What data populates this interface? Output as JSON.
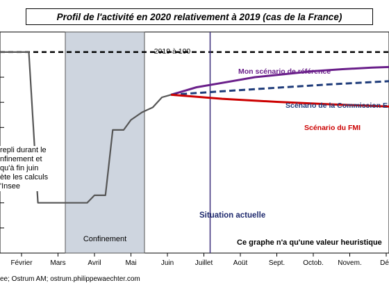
{
  "chart_data": {
    "type": "line",
    "title": "Profil de l'activité en 2020 relativement à 2019 (cas de la France)",
    "x_ticks": [
      "Février",
      "Mars",
      "Avril",
      "Mai",
      "Juin",
      "Juillet",
      "Aoüt",
      "Sept.",
      "Octob.",
      "Novem.",
      "Déc"
    ],
    "reference": {
      "label": "2019 à 100",
      "value": 100
    },
    "ylim": [
      60,
      104
    ],
    "confinement_label": "Confinement",
    "situation_label": "Situation actuelle",
    "situation_month": 5.0,
    "series": [
      {
        "name": "",
        "color": "#555555",
        "points": [
          [
            -1.0,
            100
          ],
          [
            0.2,
            100
          ],
          [
            0.45,
            70
          ],
          [
            1.8,
            70
          ],
          [
            2.0,
            71.5
          ],
          [
            2.3,
            71.5
          ],
          [
            2.5,
            84.5
          ],
          [
            2.8,
            84.5
          ],
          [
            3.0,
            86.5
          ],
          [
            3.3,
            88
          ],
          [
            3.6,
            89
          ],
          [
            3.85,
            91
          ],
          [
            4.1,
            91.5
          ]
        ]
      },
      {
        "name": "Mon scénario de référence",
        "color": "#6a1f8a",
        "points": [
          [
            4.1,
            91.5
          ],
          [
            4.8,
            93
          ],
          [
            5.6,
            94
          ],
          [
            6.4,
            95
          ],
          [
            7.2,
            95.6
          ],
          [
            8.0,
            96.2
          ],
          [
            8.8,
            96.6
          ],
          [
            9.6,
            96.9
          ],
          [
            10.3,
            97.1
          ]
        ]
      },
      {
        "name": "Scénario de la Commission E",
        "color": "#1f3c7a",
        "dashed": true,
        "points": [
          [
            4.1,
            91.5
          ],
          [
            5.5,
            92.2
          ],
          [
            7.0,
            92.9
          ],
          [
            8.5,
            93.6
          ],
          [
            10.3,
            94.3
          ]
        ]
      },
      {
        "name": "Scénario du FMI",
        "color": "#cc0000",
        "points": [
          [
            4.1,
            91.5
          ],
          [
            5.5,
            90.7
          ],
          [
            7.0,
            90.1
          ],
          [
            8.5,
            89.6
          ],
          [
            10.3,
            89.1
          ]
        ]
      }
    ],
    "annotation": "Ce graphe n'a qu'une valeur heuristique"
  },
  "left_note": "repli durant le\nnfinement et\nqu'à fin juin\nète les calculs\n'Insee",
  "source": "ee; Ostrum AM;  ostrum.philippewaechter.com"
}
